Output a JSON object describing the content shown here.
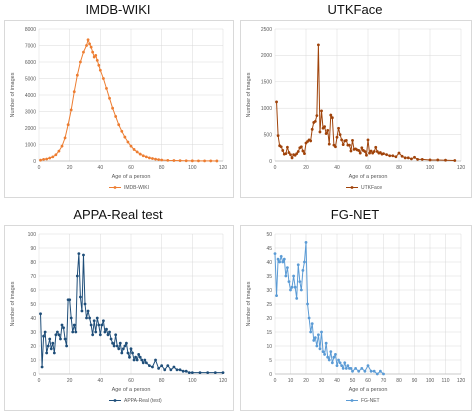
{
  "chart_data": [
    {
      "type": "line",
      "title": "IMDB-WIKI",
      "xlabel": "Age of a person",
      "ylabel": "Number of images",
      "xlim": [
        0,
        120
      ],
      "ylim": [
        0,
        8000
      ],
      "xticks": [
        0,
        20,
        40,
        60,
        80,
        100,
        120
      ],
      "yticks": [
        0,
        1000,
        2000,
        3000,
        4000,
        5000,
        6000,
        7000,
        8000
      ],
      "grid": true,
      "legend_position": "bottom",
      "color": "#ED7D31",
      "series": [
        {
          "name": "IMDB-WIKI",
          "x": [
            1,
            3,
            5,
            7,
            9,
            11,
            13,
            15,
            17,
            19,
            21,
            23,
            25,
            27,
            29,
            31,
            32,
            33,
            34,
            35,
            36,
            37,
            38,
            39,
            40,
            42,
            44,
            46,
            48,
            50,
            52,
            54,
            56,
            58,
            60,
            62,
            64,
            66,
            68,
            70,
            72,
            74,
            76,
            78,
            80,
            84,
            88,
            92,
            96,
            100,
            104,
            108,
            112,
            116
          ],
          "y": [
            50,
            100,
            120,
            180,
            250,
            380,
            600,
            900,
            1400,
            2200,
            3100,
            4200,
            5200,
            6000,
            6600,
            7000,
            7350,
            7100,
            6900,
            6600,
            6300,
            6400,
            6100,
            5800,
            5500,
            5000,
            4400,
            3800,
            3200,
            2700,
            2200,
            1800,
            1450,
            1150,
            900,
            700,
            550,
            420,
            320,
            250,
            190,
            150,
            110,
            80,
            60,
            40,
            30,
            20,
            15,
            10,
            8,
            6,
            4,
            3
          ]
        }
      ]
    },
    {
      "type": "line",
      "title": "UTKFace",
      "xlabel": "Age of a person",
      "ylabel": "Number of images",
      "xlim": [
        0,
        120
      ],
      "ylim": [
        0,
        2500
      ],
      "xticks": [
        0,
        20,
        40,
        60,
        80,
        100,
        120
      ],
      "yticks": [
        0,
        500,
        1000,
        1500,
        2000,
        2500
      ],
      "grid": true,
      "legend_position": "bottom",
      "color": "#A0430A",
      "series": [
        {
          "name": "UTKFace",
          "x": [
            1,
            2,
            3,
            4,
            5,
            6,
            7,
            8,
            9,
            10,
            11,
            12,
            13,
            14,
            15,
            16,
            17,
            18,
            19,
            20,
            21,
            22,
            23,
            24,
            25,
            26,
            27,
            28,
            29,
            30,
            31,
            32,
            33,
            34,
            35,
            36,
            37,
            38,
            39,
            40,
            41,
            42,
            43,
            44,
            45,
            46,
            47,
            48,
            49,
            50,
            51,
            52,
            53,
            54,
            55,
            56,
            57,
            58,
            59,
            60,
            61,
            62,
            63,
            64,
            65,
            66,
            67,
            68,
            69,
            70,
            72,
            74,
            76,
            78,
            80,
            82,
            84,
            86,
            88,
            90,
            92,
            95,
            100,
            105,
            110,
            116
          ],
          "y": [
            1120,
            480,
            290,
            270,
            200,
            130,
            140,
            260,
            160,
            120,
            60,
            120,
            110,
            140,
            180,
            250,
            270,
            190,
            140,
            340,
            370,
            400,
            380,
            600,
            730,
            750,
            860,
            2200,
            550,
            950,
            620,
            650,
            520,
            580,
            320,
            870,
            820,
            300,
            270,
            450,
            620,
            500,
            400,
            310,
            380,
            390,
            300,
            300,
            190,
            390,
            220,
            230,
            210,
            200,
            150,
            250,
            200,
            180,
            110,
            400,
            150,
            190,
            150,
            180,
            260,
            180,
            150,
            160,
            130,
            140,
            120,
            100,
            100,
            80,
            150,
            90,
            60,
            60,
            40,
            70,
            30,
            30,
            20,
            20,
            15,
            10
          ]
        }
      ]
    },
    {
      "type": "line",
      "title": "APPA-Real test",
      "xlabel": "Age of a person",
      "ylabel": "Number of images",
      "xlim": [
        0,
        120
      ],
      "ylim": [
        0,
        100
      ],
      "xticks": [
        0,
        20,
        40,
        60,
        80,
        100,
        120
      ],
      "yticks": [
        0,
        10,
        20,
        30,
        40,
        50,
        60,
        70,
        80,
        90,
        100
      ],
      "grid": true,
      "legend_position": "bottom",
      "color": "#1F4E79",
      "series": [
        {
          "name": "APPA-Real (test)",
          "x": [
            1,
            2,
            3,
            4,
            5,
            6,
            7,
            8,
            9,
            10,
            11,
            12,
            13,
            14,
            15,
            16,
            17,
            18,
            19,
            20,
            21,
            22,
            23,
            24,
            25,
            26,
            27,
            28,
            29,
            30,
            31,
            32,
            33,
            34,
            35,
            36,
            37,
            38,
            39,
            40,
            41,
            42,
            43,
            44,
            45,
            46,
            47,
            48,
            49,
            50,
            51,
            52,
            53,
            54,
            55,
            56,
            57,
            58,
            59,
            60,
            61,
            62,
            63,
            64,
            65,
            66,
            67,
            68,
            69,
            70,
            72,
            74,
            76,
            78,
            80,
            82,
            84,
            86,
            88,
            90,
            92,
            94,
            96,
            98,
            100,
            105,
            110,
            115,
            120
          ],
          "y": [
            43,
            5,
            27,
            30,
            15,
            20,
            25,
            18,
            22,
            15,
            28,
            30,
            28,
            25,
            35,
            33,
            25,
            20,
            53,
            53,
            40,
            30,
            35,
            30,
            70,
            86,
            55,
            45,
            85,
            50,
            40,
            45,
            40,
            35,
            28,
            38,
            30,
            40,
            35,
            28,
            35,
            38,
            30,
            32,
            28,
            30,
            25,
            22,
            20,
            28,
            20,
            18,
            22,
            15,
            18,
            20,
            22,
            15,
            12,
            18,
            15,
            10,
            12,
            10,
            14,
            12,
            10,
            8,
            10,
            8,
            6,
            5,
            10,
            4,
            6,
            3,
            6,
            3,
            5,
            3,
            3,
            2,
            2,
            1,
            1,
            1,
            1,
            1,
            1
          ]
        }
      ]
    },
    {
      "type": "line",
      "title": "FG-NET",
      "xlabel": "Age of a person",
      "ylabel": "Number of images",
      "xlim": [
        0,
        120
      ],
      "ylim": [
        0,
        50
      ],
      "xticks": [
        0,
        10,
        20,
        30,
        40,
        50,
        60,
        70,
        80,
        90,
        100,
        110,
        120
      ],
      "yticks": [
        0,
        5,
        10,
        15,
        20,
        25,
        30,
        35,
        40,
        45,
        50
      ],
      "grid": true,
      "legend_position": "bottom",
      "color": "#5B9BD5",
      "series": [
        {
          "name": "FG-NET",
          "x": [
            0,
            1,
            2,
            3,
            4,
            5,
            6,
            7,
            8,
            9,
            10,
            11,
            12,
            13,
            14,
            15,
            16,
            17,
            18,
            19,
            20,
            21,
            22,
            23,
            24,
            25,
            26,
            27,
            28,
            29,
            30,
            31,
            32,
            33,
            34,
            35,
            36,
            37,
            38,
            39,
            40,
            41,
            42,
            43,
            44,
            45,
            46,
            47,
            48,
            49,
            50,
            52,
            54,
            56,
            58,
            60,
            62,
            64,
            66,
            68,
            70
          ],
          "y": [
            43,
            28,
            41,
            40,
            42,
            40,
            41,
            35,
            38,
            33,
            30,
            31,
            35,
            31,
            27,
            39,
            33,
            30,
            37,
            40,
            47,
            25,
            20,
            15,
            18,
            12,
            13,
            10,
            14,
            9,
            15,
            8,
            7,
            11,
            6,
            5,
            8,
            4,
            6,
            7,
            3,
            5,
            4,
            3,
            2,
            4,
            2,
            3,
            2,
            2,
            1,
            2,
            1,
            2,
            1,
            3,
            1,
            1,
            0,
            1,
            0
          ]
        }
      ]
    }
  ]
}
